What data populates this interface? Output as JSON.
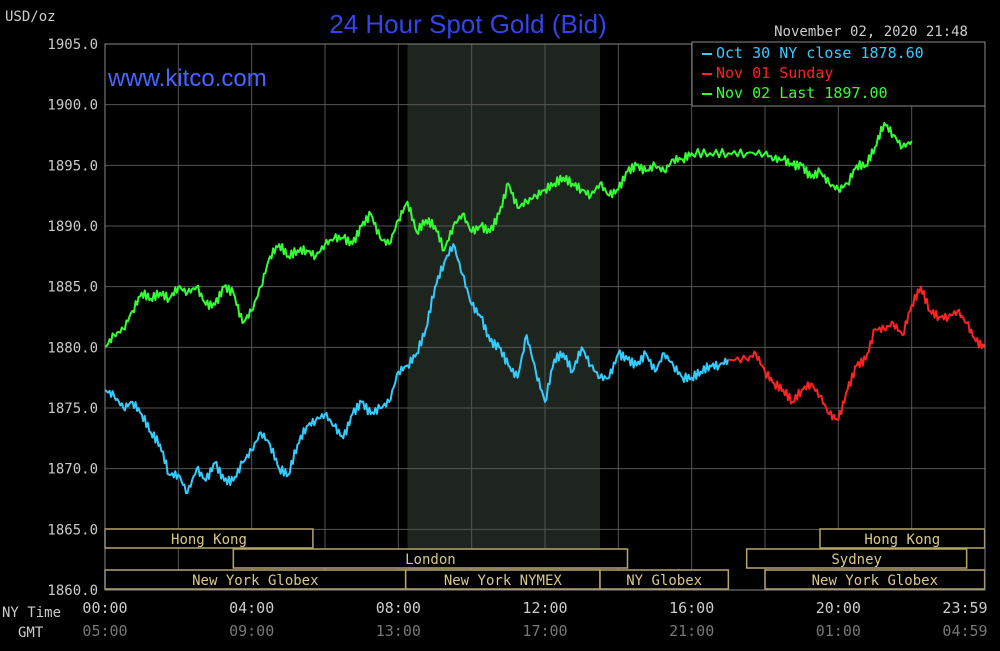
{
  "header": {
    "unit": "USD/oz",
    "title": "24 Hour Spot Gold (Bid)",
    "timestamp": "November 02, 2020 21:48",
    "website": "www.kitco.com"
  },
  "legend": [
    {
      "label": "Oct 30 NY close 1878.60",
      "color": "#33ccff"
    },
    {
      "label": "Nov 01 Sunday",
      "color": "#ff2222"
    },
    {
      "label": "Nov 02 Last 1897.00",
      "color": "#33ff33"
    }
  ],
  "sessions": [
    {
      "label": "Hong Kong",
      "row": 0,
      "start": 0,
      "end": 5.67
    },
    {
      "label": "London",
      "row": 1,
      "start": 3.5,
      "end": 14.25
    },
    {
      "label": "New York Globex",
      "row": 2,
      "start": 0,
      "end": 8.2
    },
    {
      "label": "New York NYMEX",
      "row": 2,
      "start": 8.2,
      "end": 13.5
    },
    {
      "label": "NY Globex",
      "row": 2,
      "start": 13.5,
      "end": 17.0
    },
    {
      "label": "Hong Kong",
      "row": 0,
      "start": 19.5,
      "end": 23.99
    },
    {
      "label": "Sydney",
      "row": 1,
      "start": 17.5,
      "end": 23.5
    },
    {
      "label": "New York Globex",
      "row": 2,
      "start": 18.0,
      "end": 23.99
    }
  ],
  "axis": {
    "ny_time_label": "NY Time",
    "gmt_label": "GMT",
    "ny_ticks": [
      "00:00",
      "04:00",
      "08:00",
      "12:00",
      "16:00",
      "20:00",
      "23:59"
    ],
    "gmt_ticks": [
      "05:00",
      "09:00",
      "13:00",
      "17:00",
      "21:00",
      "01:00",
      "04:59"
    ]
  },
  "chart_data": {
    "type": "line",
    "title": "24 Hour Spot Gold (Bid)",
    "ylabel": "USD/oz",
    "xlabel": "NY Time / GMT",
    "x_unit": "hours (NY time)",
    "xlim": [
      0,
      24
    ],
    "ylim": [
      1860,
      1905
    ],
    "yticks": [
      1905,
      1900,
      1895,
      1890,
      1885,
      1880,
      1875,
      1870,
      1865,
      1860
    ],
    "shaded_range": [
      8.25,
      13.5
    ],
    "grid": true,
    "legend_position": "top-right",
    "series": [
      {
        "name": "Oct 30 NY close 1878.60",
        "color": "#33ccff",
        "x": [
          0,
          0.25,
          0.5,
          0.75,
          1.0,
          1.25,
          1.5,
          1.75,
          2.0,
          2.25,
          2.5,
          2.75,
          3.0,
          3.25,
          3.5,
          3.75,
          4.0,
          4.25,
          4.5,
          4.75,
          5.0,
          5.25,
          5.5,
          5.75,
          6.0,
          6.25,
          6.5,
          6.75,
          7.0,
          7.25,
          7.5,
          7.75,
          8.0,
          8.25,
          8.5,
          8.75,
          9.0,
          9.25,
          9.5,
          9.75,
          10.0,
          10.25,
          10.5,
          10.75,
          11.0,
          11.25,
          11.5,
          11.75,
          12.0,
          12.25,
          12.5,
          12.75,
          13.0,
          13.25,
          13.5,
          13.75,
          14.0,
          14.25,
          14.5,
          14.75,
          15.0,
          15.25,
          15.5,
          15.75,
          16.0,
          16.25,
          16.5,
          16.75,
          17.0
        ],
        "y": [
          1876.5,
          1876.0,
          1875.0,
          1875.5,
          1874.5,
          1873.0,
          1872.0,
          1869.5,
          1869.5,
          1868.0,
          1870.0,
          1869.0,
          1870.5,
          1869.0,
          1869.0,
          1870.5,
          1871.5,
          1873.0,
          1872.0,
          1870.0,
          1869.5,
          1872.0,
          1873.5,
          1874.0,
          1874.5,
          1873.5,
          1872.5,
          1874.5,
          1875.5,
          1874.5,
          1875.0,
          1875.5,
          1878.0,
          1878.5,
          1879.5,
          1881.5,
          1885.0,
          1887.0,
          1888.5,
          1886.0,
          1883.5,
          1882.5,
          1880.5,
          1880.0,
          1878.5,
          1877.5,
          1881.0,
          1878.0,
          1875.5,
          1879.0,
          1879.5,
          1878.0,
          1880.0,
          1878.5,
          1877.5,
          1877.5,
          1879.5,
          1879.0,
          1878.5,
          1879.5,
          1878.0,
          1879.5,
          1878.5,
          1877.5,
          1877.5,
          1878.0,
          1878.5,
          1878.5,
          1879.0
        ]
      },
      {
        "name": "Nov 01 Sunday",
        "color": "#ff2222",
        "x": [
          17.0,
          17.5,
          17.75,
          18.0,
          18.25,
          18.5,
          18.75,
          19.0,
          19.25,
          19.5,
          19.75,
          20.0,
          20.25,
          20.5,
          20.75,
          21.0,
          21.25,
          21.5,
          21.75,
          22.0,
          22.25,
          22.5,
          22.75,
          23.0,
          23.25,
          23.5,
          23.75,
          23.99
        ],
        "y": [
          1879.0,
          1879.0,
          1879.5,
          1878.0,
          1877.0,
          1876.5,
          1875.5,
          1876.5,
          1877.0,
          1876.0,
          1874.5,
          1874.0,
          1876.5,
          1878.5,
          1879.0,
          1881.5,
          1881.5,
          1882.0,
          1881.0,
          1883.5,
          1885.0,
          1883.0,
          1882.5,
          1882.5,
          1883.0,
          1882.0,
          1880.5,
          1880.0
        ]
      },
      {
        "name": "Nov 02 Last 1897.00",
        "color": "#33ff33",
        "x": [
          0,
          0.25,
          0.5,
          0.75,
          1.0,
          1.25,
          1.5,
          1.75,
          2.0,
          2.25,
          2.5,
          2.75,
          3.0,
          3.25,
          3.5,
          3.75,
          4.0,
          4.25,
          4.5,
          4.75,
          5.0,
          5.25,
          5.5,
          5.75,
          6.0,
          6.25,
          6.5,
          6.75,
          7.0,
          7.25,
          7.5,
          7.75,
          8.0,
          8.25,
          8.5,
          8.75,
          9.0,
          9.25,
          9.5,
          9.75,
          10.0,
          10.25,
          10.5,
          10.75,
          11.0,
          11.25,
          11.5,
          11.75,
          12.0,
          12.25,
          12.5,
          12.75,
          13.0,
          13.25,
          13.5,
          13.75,
          14.0,
          14.25,
          14.5,
          14.75,
          15.0,
          15.25,
          15.5,
          15.75,
          16.0,
          16.5,
          17.0,
          17.5,
          18.0,
          18.25,
          18.5,
          18.75,
          19.0,
          19.25,
          19.5,
          19.75,
          20.0,
          20.25,
          20.5,
          20.75,
          21.0,
          21.25,
          21.5,
          21.75,
          22.0
        ],
        "y": [
          1880.0,
          1881.0,
          1881.5,
          1883.0,
          1884.5,
          1884.0,
          1884.5,
          1884.0,
          1885.0,
          1884.5,
          1885.0,
          1883.5,
          1883.5,
          1885.0,
          1884.5,
          1882.0,
          1883.0,
          1885.0,
          1887.5,
          1888.5,
          1887.5,
          1888.0,
          1888.0,
          1887.5,
          1888.5,
          1889.0,
          1889.0,
          1888.5,
          1890.0,
          1891.0,
          1889.0,
          1888.5,
          1890.5,
          1892.0,
          1889.5,
          1890.5,
          1890.0,
          1888.0,
          1890.0,
          1891.0,
          1889.5,
          1890.0,
          1889.5,
          1891.0,
          1893.5,
          1891.5,
          1892.0,
          1892.5,
          1893.0,
          1893.5,
          1894.0,
          1893.5,
          1893.0,
          1892.5,
          1893.5,
          1892.5,
          1893.0,
          1894.5,
          1895.0,
          1894.5,
          1895.0,
          1894.5,
          1895.5,
          1895.5,
          1896.0,
          1896.0,
          1896.0,
          1896.0,
          1896.0,
          1895.5,
          1895.5,
          1895.0,
          1895.0,
          1894.0,
          1894.5,
          1893.5,
          1893.0,
          1893.5,
          1895.0,
          1895.0,
          1896.5,
          1898.5,
          1897.5,
          1896.5,
          1897.0
        ]
      }
    ]
  }
}
